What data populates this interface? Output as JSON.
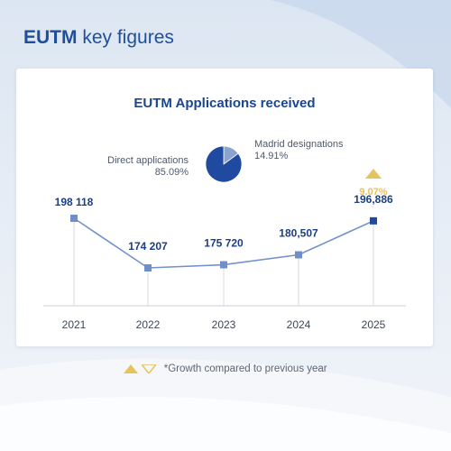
{
  "page": {
    "title_bold": "EUTM",
    "title_rest": " key figures"
  },
  "colors": {
    "title": "#1f4f9c",
    "marker": "#6f8fc8",
    "marker_last": "#1f4aa0",
    "value_label": "#1b3f80",
    "growth": "#e7c35c"
  },
  "chart_data": {
    "type": "line",
    "title": "EUTM Applications received",
    "xlabel": "",
    "ylabel": "",
    "categories": [
      "2021",
      "2022",
      "2023",
      "2024",
      "2025"
    ],
    "series": [
      {
        "values": [
          198118,
          174207,
          175720,
          180507,
          196886
        ],
        "value_labels": [
          "198 118",
          "174 207",
          "175 720",
          "180,507",
          "196,886"
        ]
      }
    ],
    "annotations": [
      {
        "category": "2025",
        "direction": "up",
        "text": "9.07%"
      }
    ],
    "pie": {
      "slices": [
        {
          "label": "Direct applications",
          "value_label": "85.09%",
          "value": 85.09,
          "color": "#1f4aa0"
        },
        {
          "label": "Madrid designations",
          "value_label": "14.91%",
          "value": 14.91,
          "color": "#8aa3cf"
        }
      ]
    },
    "grid": false
  },
  "footer": {
    "note": "*Growth compared to previous year"
  }
}
